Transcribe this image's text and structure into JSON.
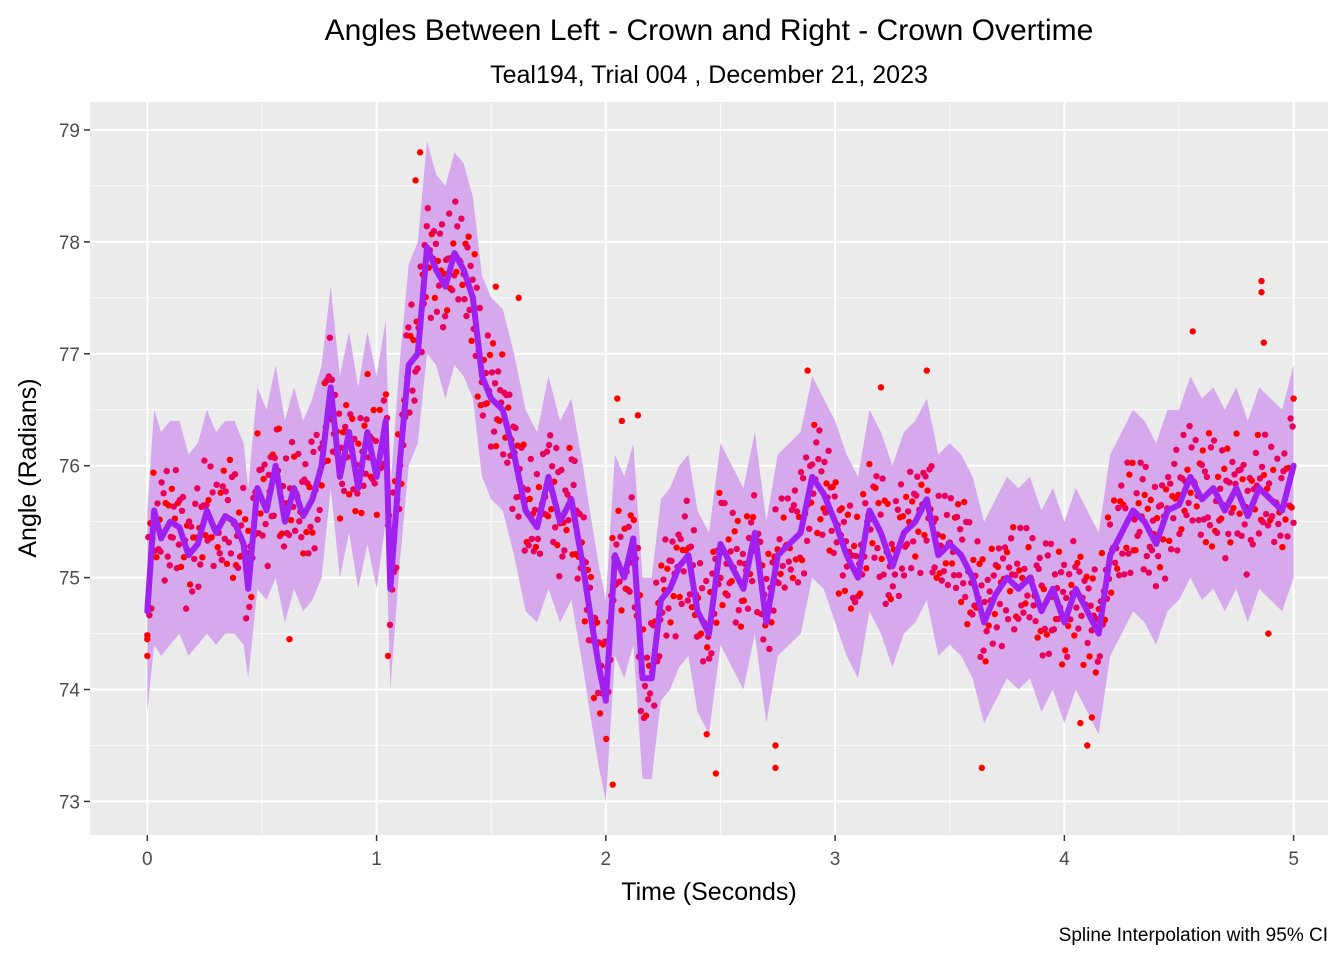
{
  "chart_data": {
    "type": "scatter",
    "title": "Angles Between Left - Crown and Right - Crown Overtime",
    "subtitle": "Teal194, Trial 004 , December 21, 2023",
    "xlabel": "Time (Seconds)",
    "ylabel": "Angle (Radians)",
    "caption": "Spline Interpolation with 95% CI",
    "xlim": [
      -0.25,
      5.15
    ],
    "ylim": [
      72.7,
      79.25
    ],
    "x_ticks": [
      0,
      1,
      2,
      3,
      4,
      5
    ],
    "x_tick_labels": [
      "0",
      "1",
      "2",
      "3",
      "4",
      "5"
    ],
    "y_ticks": [
      73,
      74,
      75,
      76,
      77,
      78,
      79
    ],
    "y_tick_labels": [
      "73",
      "74",
      "75",
      "76",
      "77",
      "78",
      "79"
    ],
    "grid": true,
    "colors": {
      "panel": "#ebebeb",
      "grid": "#ffffff",
      "points": "#ff0000",
      "points_overlay": "#e8005a",
      "line": "#a020f0",
      "ribbon": "#d6a8ec"
    },
    "spline": {
      "x": [
        0,
        0.03,
        0.06,
        0.1,
        0.14,
        0.18,
        0.22,
        0.26,
        0.3,
        0.34,
        0.38,
        0.42,
        0.44,
        0.48,
        0.52,
        0.56,
        0.6,
        0.64,
        0.68,
        0.72,
        0.76,
        0.8,
        0.84,
        0.88,
        0.92,
        0.96,
        1.0,
        1.04,
        1.06,
        1.1,
        1.14,
        1.18,
        1.22,
        1.26,
        1.3,
        1.34,
        1.38,
        1.42,
        1.46,
        1.5,
        1.55,
        1.6,
        1.65,
        1.7,
        1.75,
        1.8,
        1.85,
        1.9,
        1.93,
        1.97,
        2.0,
        2.04,
        2.08,
        2.12,
        2.16,
        2.2,
        2.24,
        2.28,
        2.32,
        2.36,
        2.4,
        2.45,
        2.5,
        2.55,
        2.6,
        2.65,
        2.7,
        2.75,
        2.8,
        2.85,
        2.9,
        2.95,
        3.0,
        3.05,
        3.1,
        3.15,
        3.2,
        3.25,
        3.3,
        3.35,
        3.4,
        3.45,
        3.5,
        3.55,
        3.6,
        3.65,
        3.7,
        3.75,
        3.8,
        3.85,
        3.9,
        3.95,
        4.0,
        4.05,
        4.1,
        4.15,
        4.2,
        4.25,
        4.3,
        4.35,
        4.4,
        4.45,
        4.5,
        4.55,
        4.6,
        4.65,
        4.7,
        4.75,
        4.8,
        4.85,
        4.9,
        4.95,
        5.0
      ],
      "y": [
        74.7,
        75.6,
        75.35,
        75.5,
        75.45,
        75.2,
        75.3,
        75.6,
        75.4,
        75.55,
        75.5,
        75.3,
        74.9,
        75.8,
        75.6,
        76.0,
        75.5,
        75.8,
        75.55,
        75.7,
        76.0,
        76.7,
        75.9,
        76.3,
        75.8,
        76.3,
        75.9,
        76.4,
        74.9,
        76.0,
        76.9,
        77.0,
        77.95,
        77.75,
        77.6,
        77.9,
        77.75,
        77.5,
        76.8,
        76.6,
        76.5,
        76.1,
        75.6,
        75.45,
        75.9,
        75.5,
        75.7,
        75.1,
        74.7,
        74.2,
        73.9,
        75.2,
        75.0,
        75.35,
        74.1,
        74.1,
        74.8,
        74.9,
        75.1,
        75.2,
        74.7,
        74.5,
        75.3,
        75.1,
        74.9,
        75.4,
        74.6,
        75.2,
        75.3,
        75.4,
        75.9,
        75.75,
        75.5,
        75.2,
        75.0,
        75.6,
        75.4,
        75.1,
        75.4,
        75.5,
        75.7,
        75.2,
        75.3,
        75.2,
        75.0,
        74.6,
        74.85,
        75.0,
        74.9,
        75.0,
        74.7,
        74.9,
        74.6,
        74.9,
        74.7,
        74.5,
        75.2,
        75.4,
        75.6,
        75.5,
        75.3,
        75.6,
        75.65,
        75.9,
        75.7,
        75.8,
        75.6,
        75.8,
        75.55,
        75.8,
        75.7,
        75.6,
        76.0
      ],
      "lower": [
        73.8,
        74.4,
        74.3,
        74.4,
        74.5,
        74.3,
        74.4,
        74.5,
        74.4,
        74.5,
        74.5,
        74.4,
        74.1,
        74.9,
        74.8,
        75.0,
        74.6,
        74.9,
        74.7,
        74.8,
        75.0,
        75.8,
        75.0,
        75.4,
        74.9,
        75.3,
        74.9,
        75.5,
        74.0,
        75.1,
        76.0,
        76.2,
        77.0,
        76.9,
        76.6,
        76.9,
        76.8,
        76.6,
        75.9,
        75.7,
        75.6,
        75.2,
        74.7,
        74.6,
        74.9,
        74.6,
        74.8,
        74.2,
        73.8,
        73.3,
        73.0,
        74.3,
        74.1,
        74.4,
        73.2,
        73.2,
        73.9,
        74.0,
        74.2,
        74.3,
        73.8,
        73.6,
        74.4,
        74.2,
        74.0,
        74.5,
        73.7,
        74.3,
        74.4,
        74.5,
        75.0,
        74.9,
        74.6,
        74.3,
        74.1,
        74.7,
        74.5,
        74.2,
        74.5,
        74.6,
        74.8,
        74.3,
        74.4,
        74.3,
        74.1,
        73.7,
        73.9,
        74.1,
        74.0,
        74.1,
        73.8,
        74.0,
        73.7,
        74.0,
        73.8,
        73.6,
        74.3,
        74.5,
        74.7,
        74.6,
        74.4,
        74.7,
        74.8,
        75.0,
        74.8,
        74.9,
        74.7,
        74.9,
        74.6,
        74.9,
        74.8,
        74.7,
        75.0
      ],
      "upper": [
        75.6,
        76.5,
        76.3,
        76.4,
        76.4,
        76.1,
        76.2,
        76.5,
        76.3,
        76.4,
        76.4,
        76.2,
        75.8,
        76.7,
        76.5,
        76.9,
        76.4,
        76.7,
        76.4,
        76.6,
        76.9,
        77.6,
        76.8,
        77.2,
        76.7,
        77.2,
        76.8,
        77.3,
        75.8,
        76.9,
        77.8,
        78.0,
        78.9,
        78.6,
        78.5,
        78.8,
        78.7,
        78.4,
        77.7,
        77.5,
        77.4,
        77.0,
        76.5,
        76.3,
        76.8,
        76.4,
        76.6,
        76.0,
        75.6,
        75.1,
        74.8,
        76.1,
        75.9,
        76.2,
        75.0,
        75.0,
        75.7,
        75.8,
        76.0,
        76.1,
        75.6,
        75.4,
        76.2,
        76.0,
        75.8,
        76.3,
        75.5,
        76.1,
        76.2,
        76.3,
        76.8,
        76.6,
        76.4,
        76.1,
        75.9,
        76.5,
        76.3,
        76.0,
        76.3,
        76.4,
        76.6,
        76.1,
        76.2,
        76.1,
        75.9,
        75.5,
        75.7,
        75.9,
        75.8,
        75.9,
        75.6,
        75.8,
        75.5,
        75.8,
        75.6,
        75.4,
        76.1,
        76.3,
        76.5,
        76.4,
        76.2,
        76.5,
        76.5,
        76.8,
        76.6,
        76.7,
        76.5,
        76.7,
        76.4,
        76.7,
        76.6,
        76.5,
        76.9
      ]
    },
    "points": {
      "n": 1125,
      "x_start": 0,
      "x_end": 5,
      "offsets": [
        -0.31,
        0.42,
        -0.18,
        0.27,
        -0.44,
        0.13,
        0.36,
        -0.22,
        0.05,
        -0.39,
        0.31,
        -0.08,
        0.19,
        -0.29,
        0.44,
        -0.12,
        0.24,
        -0.35,
        0.09,
        0.38,
        -0.26,
        0.15,
        -0.41,
        0.02,
        0.33,
        -0.16,
        0.21,
        -0.05,
        0.4,
        -0.33,
        0.11,
        -0.2,
        0.29,
        -0.37,
        0.07,
        0.35,
        -0.1,
        0.18,
        -0.43,
        0.26,
        -0.02,
        0.39,
        -0.24,
        0.14,
        -0.31,
        0.22,
        -0.14,
        0.32,
        -0.06,
        0.43,
        -0.27,
        0.1,
        -0.38,
        0.28,
        -0.19,
        0.04,
        0.37,
        -0.11,
        0.2,
        -0.34,
        0.12,
        -0.23,
        0.41,
        -0.03,
        0.25,
        -0.42,
        0.16,
        -0.09,
        0.34,
        -0.28,
        0.06,
        -0.15,
        0.3,
        -0.36,
        0.17,
        0.45,
        -0.21,
        0.08,
        -0.32,
        0.23
      ],
      "outliers": [
        {
          "x": 0.0,
          "y": 74.3
        },
        {
          "x": 0.0,
          "y": 74.45
        },
        {
          "x": 0.62,
          "y": 74.45
        },
        {
          "x": 1.05,
          "y": 74.3
        },
        {
          "x": 1.17,
          "y": 78.55
        },
        {
          "x": 1.19,
          "y": 78.8
        },
        {
          "x": 1.52,
          "y": 77.6
        },
        {
          "x": 1.62,
          "y": 77.5
        },
        {
          "x": 2.03,
          "y": 73.15
        },
        {
          "x": 2.05,
          "y": 76.6
        },
        {
          "x": 2.07,
          "y": 76.4
        },
        {
          "x": 2.14,
          "y": 76.45
        },
        {
          "x": 2.44,
          "y": 73.6
        },
        {
          "x": 2.48,
          "y": 73.25
        },
        {
          "x": 2.74,
          "y": 73.5
        },
        {
          "x": 2.74,
          "y": 73.3
        },
        {
          "x": 2.88,
          "y": 76.85
        },
        {
          "x": 3.2,
          "y": 76.7
        },
        {
          "x": 3.4,
          "y": 76.85
        },
        {
          "x": 3.64,
          "y": 73.3
        },
        {
          "x": 4.07,
          "y": 73.7
        },
        {
          "x": 4.1,
          "y": 73.5
        },
        {
          "x": 4.12,
          "y": 73.75
        },
        {
          "x": 4.56,
          "y": 77.2
        },
        {
          "x": 4.86,
          "y": 77.65
        },
        {
          "x": 4.86,
          "y": 77.55
        },
        {
          "x": 4.87,
          "y": 77.1
        },
        {
          "x": 4.89,
          "y": 74.5
        },
        {
          "x": 5.0,
          "y": 76.6
        }
      ]
    }
  }
}
